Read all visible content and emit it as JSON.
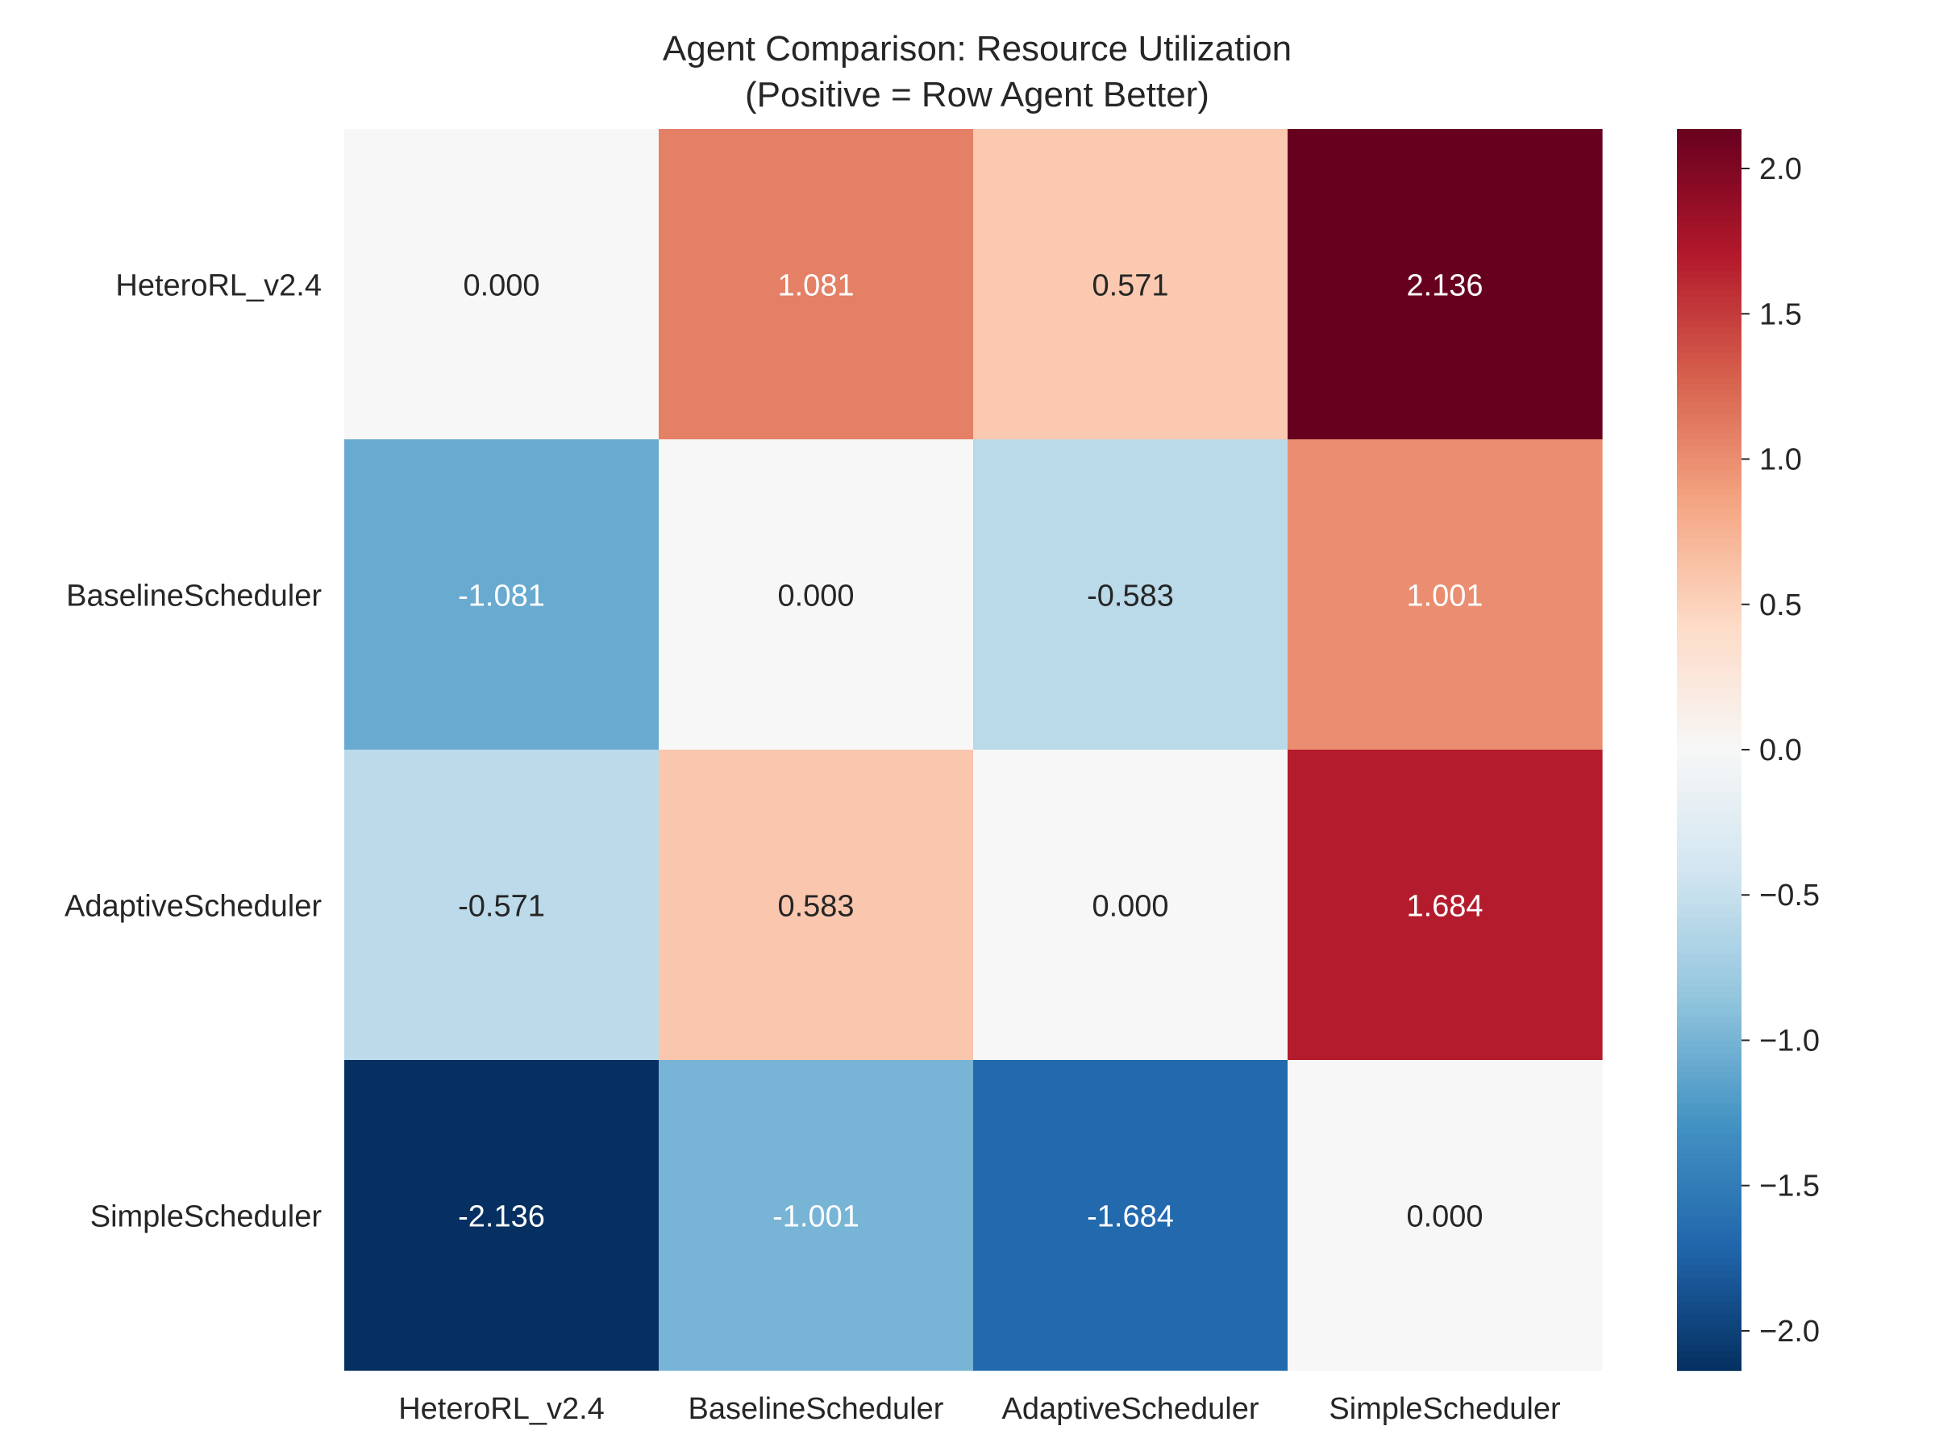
{
  "chart_data": {
    "type": "heatmap",
    "title": "Agent Comparison: Resource Utilization",
    "subtitle": "(Positive = Row Agent Better)",
    "rows": [
      "HeteroRL_v2.4",
      "BaselineScheduler",
      "AdaptiveScheduler",
      "SimpleScheduler"
    ],
    "columns": [
      "HeteroRL_v2.4",
      "BaselineScheduler",
      "AdaptiveScheduler",
      "SimpleScheduler"
    ],
    "values": [
      [
        0.0,
        1.081,
        0.571,
        2.136
      ],
      [
        -1.081,
        0.0,
        -0.583,
        1.001
      ],
      [
        -0.571,
        0.583,
        0.0,
        1.684
      ],
      [
        -2.136,
        -1.001,
        -1.684,
        0.0
      ]
    ],
    "cell_labels": [
      [
        "0.000",
        "1.081",
        "0.571",
        "2.136"
      ],
      [
        "-1.081",
        "0.000",
        "-0.583",
        "1.001"
      ],
      [
        "-0.571",
        "0.583",
        "0.000",
        "1.684"
      ],
      [
        "-2.136",
        "-1.001",
        "-1.684",
        "0.000"
      ]
    ],
    "colormap": "RdBu_r",
    "vmin": -2.136,
    "vmax": 2.136,
    "colorbar": {
      "ticks": [
        2.0,
        1.5,
        1.0,
        0.5,
        0.0,
        -0.5,
        -1.0,
        -1.5,
        -2.0
      ],
      "tick_labels": [
        "2.0",
        "1.5",
        "1.0",
        "0.5",
        "0.0",
        "−0.5",
        "−1.0",
        "−1.5",
        "−2.0"
      ]
    },
    "xlabel": "",
    "ylabel": "",
    "grid": false
  }
}
